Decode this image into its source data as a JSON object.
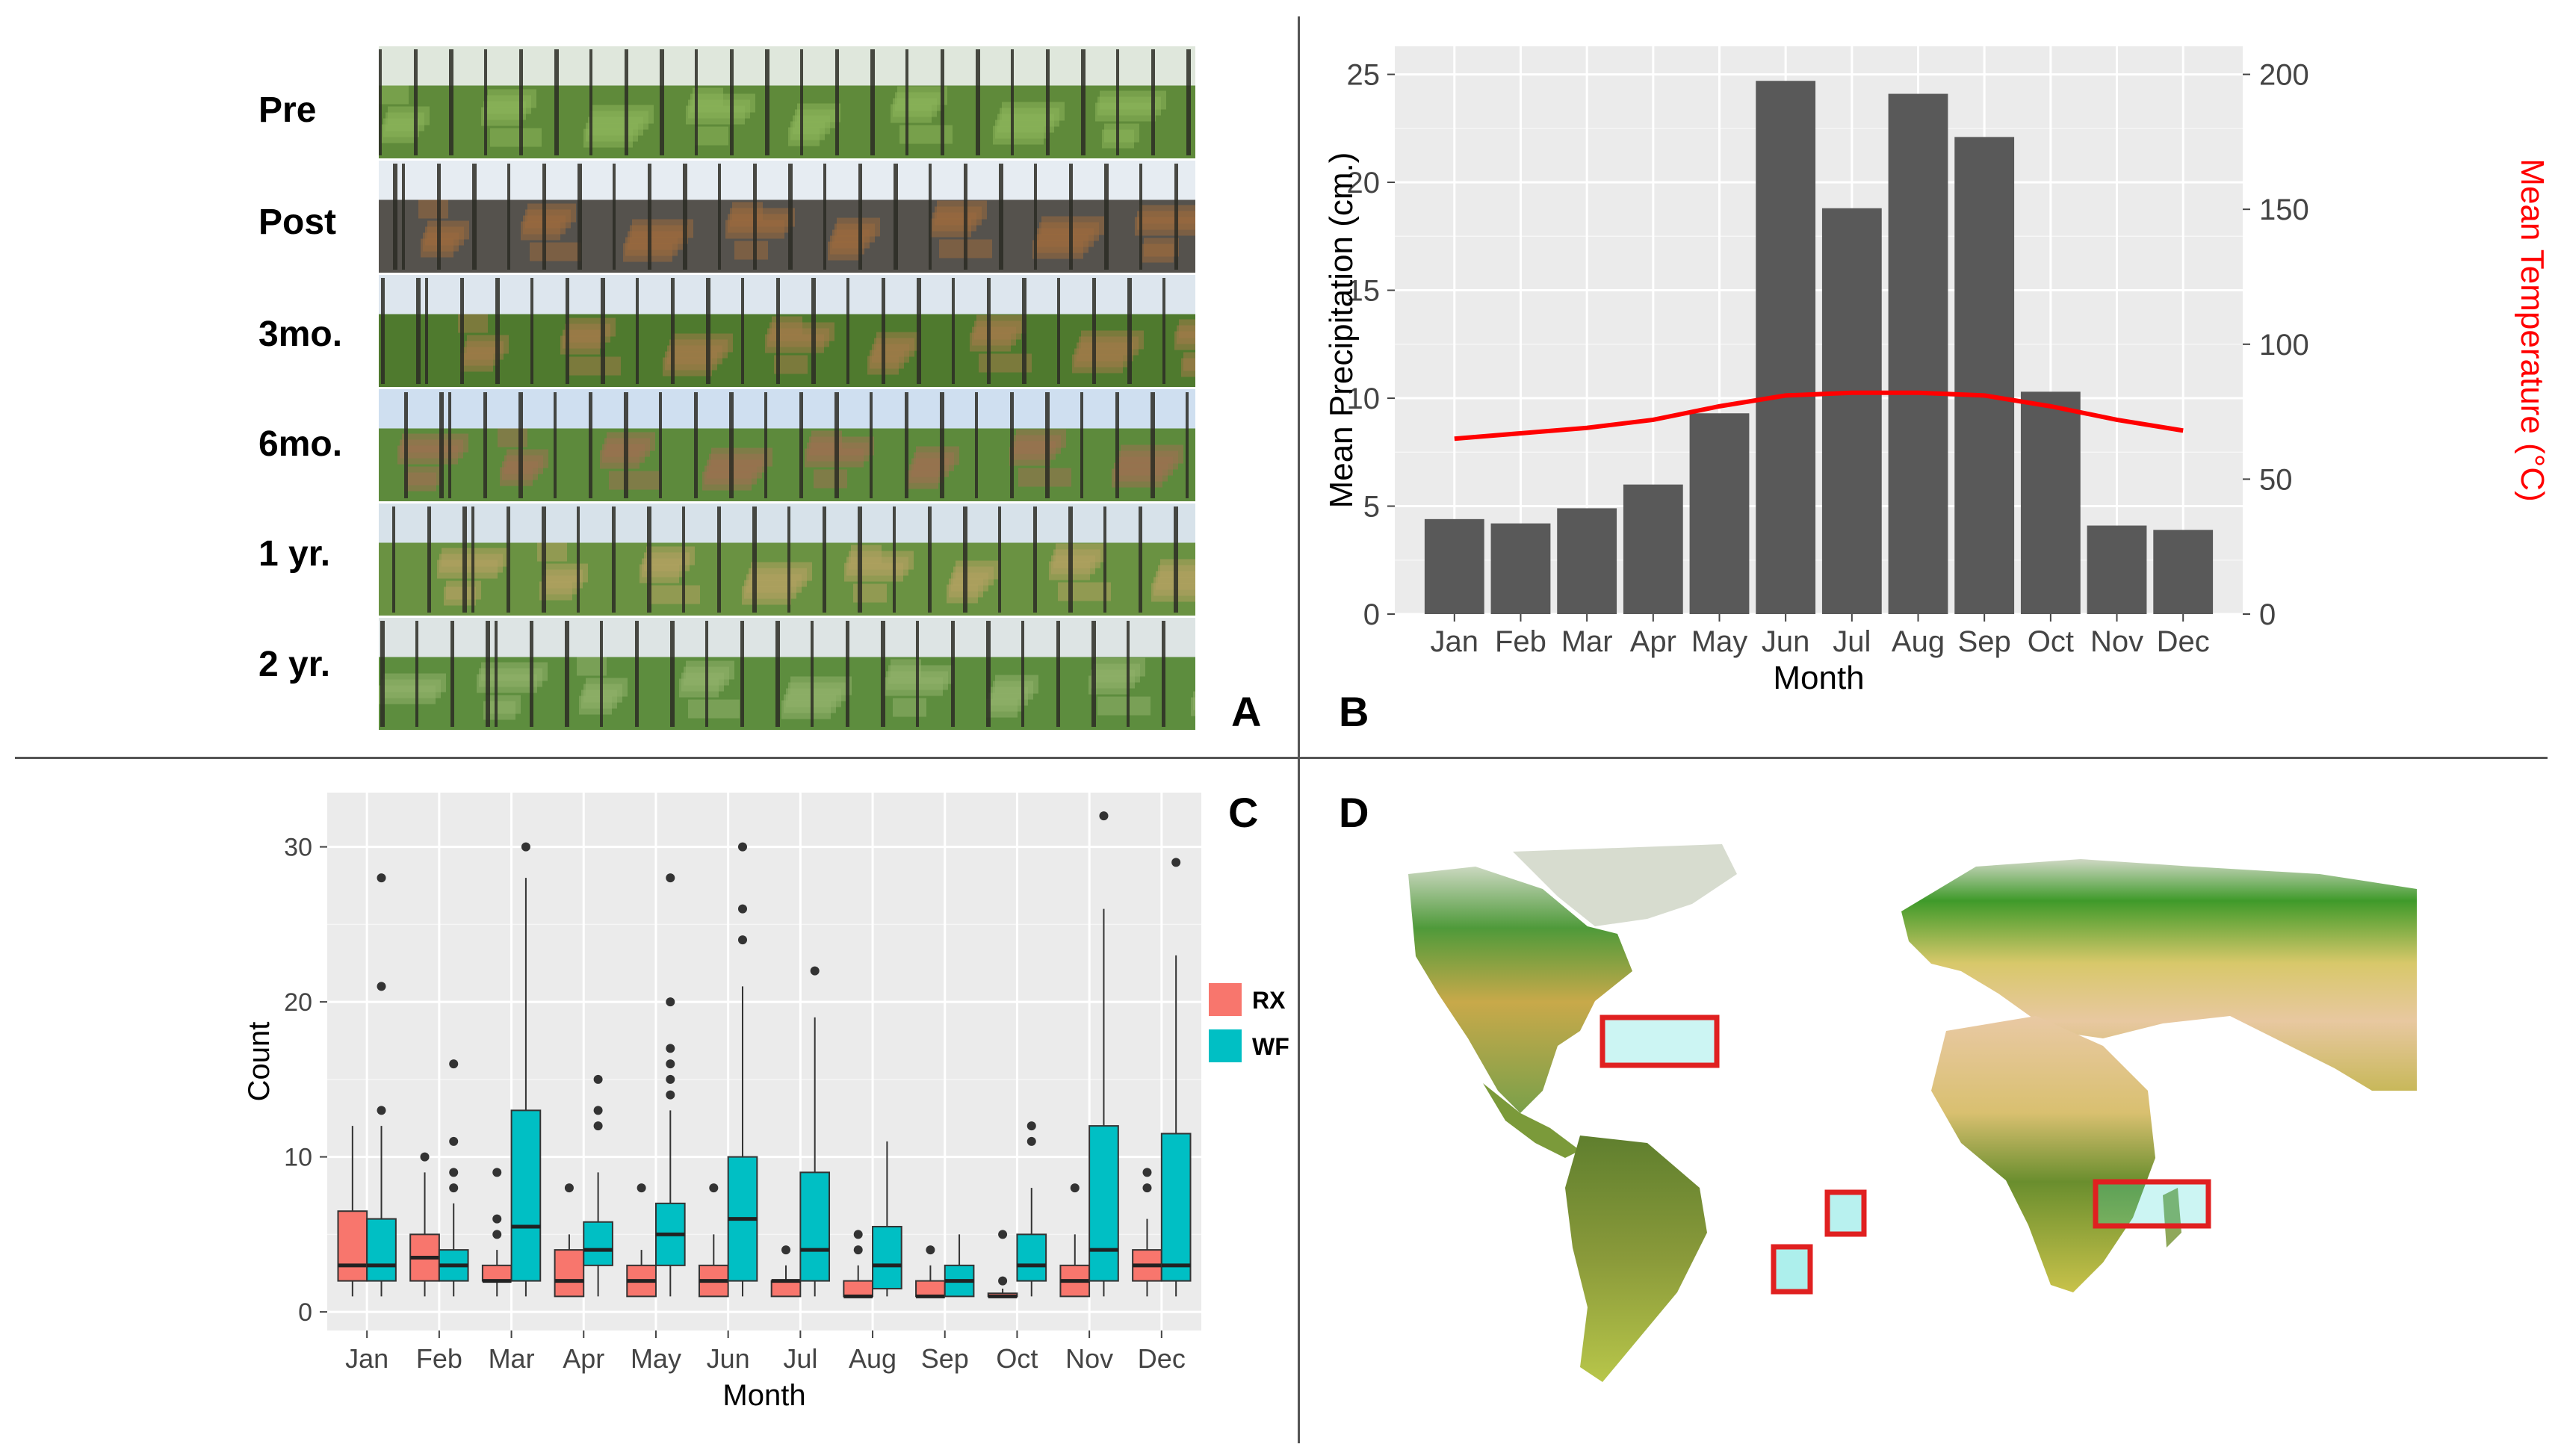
{
  "panel_letters": {
    "a": "A",
    "b": "B",
    "c": "C",
    "d": "D"
  },
  "panel_a": {
    "rows": [
      {
        "label": "Pre",
        "sky": "#dfe7dc",
        "ground": "#5f8a3a",
        "tint": "#8ab25a"
      },
      {
        "label": "Post",
        "sky": "#e6ecf2",
        "ground": "#55524d",
        "tint": "#9a6a3e"
      },
      {
        "label": "3mo.",
        "sky": "#dde6ee",
        "ground": "#4f7a2e",
        "tint": "#a17a48"
      },
      {
        "label": "6mo.",
        "sky": "#cfdff0",
        "ground": "#5d8a3c",
        "tint": "#9b7150"
      },
      {
        "label": "1 yr.",
        "sky": "#d7e2ea",
        "ground": "#6a9242",
        "tint": "#b0a060"
      },
      {
        "label": "2 yr.",
        "sky": "#dde4e4",
        "ground": "#5d8d3e",
        "tint": "#8fb06a"
      }
    ]
  },
  "chart_data": [
    {
      "type": "bar",
      "panel": "B",
      "title": "",
      "xlabel": "Month",
      "ylabel": "Mean Precipitation (cm.)",
      "y2label": "Mean Temperature (°C)",
      "categories": [
        "Jan",
        "Feb",
        "Mar",
        "Apr",
        "May",
        "Jun",
        "Jul",
        "Aug",
        "Sep",
        "Oct",
        "Nov",
        "Dec"
      ],
      "series": [
        {
          "name": "Mean Precipitation",
          "axis": "left",
          "color": "#595959",
          "values": [
            4.4,
            4.2,
            4.9,
            6.0,
            9.3,
            24.7,
            18.8,
            24.1,
            22.1,
            10.3,
            4.1,
            3.9
          ]
        },
        {
          "name": "Mean Temperature",
          "axis": "right",
          "type": "line",
          "color": "#ff0000",
          "values": [
            65,
            67,
            69,
            72,
            77,
            81,
            82,
            82,
            81,
            77,
            72,
            68
          ]
        }
      ],
      "ylim": [
        0,
        26.3
      ],
      "yticks": [
        0,
        5,
        10,
        15,
        20,
        25
      ],
      "y2ticks": [
        0,
        50,
        100,
        150,
        200
      ],
      "y2_scale_per_y": 8
    },
    {
      "type": "box",
      "panel": "C",
      "xlabel": "Month",
      "ylabel": "Count",
      "categories": [
        "Jan",
        "Feb",
        "Mar",
        "Apr",
        "May",
        "Jun",
        "Jul",
        "Aug",
        "Sep",
        "Oct",
        "Nov",
        "Dec"
      ],
      "ylim": [
        0,
        33.5
      ],
      "yticks": [
        0,
        10,
        20,
        30
      ],
      "legend": {
        "items": [
          {
            "name": "RX",
            "color": "#f8766d"
          },
          {
            "name": "WF",
            "color": "#00bfc4"
          }
        ],
        "position": "right"
      },
      "series": [
        {
          "name": "RX",
          "color": "#f8766d",
          "boxes": [
            {
              "min": 1,
              "q1": 2,
              "median": 3,
              "q3": 6.5,
              "max": 12,
              "outliers": []
            },
            {
              "min": 1,
              "q1": 2,
              "median": 3.5,
              "q3": 5,
              "max": 9,
              "outliers": [
                10
              ]
            },
            {
              "min": 1,
              "q1": 2,
              "median": 2,
              "q3": 3,
              "max": 4,
              "outliers": [
                5,
                6,
                9
              ]
            },
            {
              "min": 1,
              "q1": 1,
              "median": 2,
              "q3": 4,
              "max": 5,
              "outliers": [
                8
              ]
            },
            {
              "min": 1,
              "q1": 1,
              "median": 2,
              "q3": 3,
              "max": 4,
              "outliers": [
                8
              ]
            },
            {
              "min": 1,
              "q1": 1,
              "median": 2,
              "q3": 3,
              "max": 5,
              "outliers": [
                8
              ]
            },
            {
              "min": 1,
              "q1": 1,
              "median": 2,
              "q3": 2,
              "max": 3,
              "outliers": [
                4
              ]
            },
            {
              "min": 1,
              "q1": 1,
              "median": 1,
              "q3": 2,
              "max": 3,
              "outliers": [
                4,
                5
              ]
            },
            {
              "min": 1,
              "q1": 1,
              "median": 1,
              "q3": 2,
              "max": 3,
              "outliers": [
                4
              ]
            },
            {
              "min": 1,
              "q1": 1,
              "median": 1,
              "q3": 1.2,
              "max": 1.5,
              "outliers": [
                2,
                5
              ]
            },
            {
              "min": 1,
              "q1": 1,
              "median": 2,
              "q3": 3,
              "max": 5,
              "outliers": [
                8
              ]
            },
            {
              "min": 1,
              "q1": 2,
              "median": 3,
              "q3": 4,
              "max": 6,
              "outliers": [
                8,
                9
              ]
            }
          ]
        },
        {
          "name": "WF",
          "color": "#00bfc4",
          "boxes": [
            {
              "min": 1,
              "q1": 2,
              "median": 3,
              "q3": 6,
              "max": 12,
              "outliers": [
                13,
                21,
                28
              ]
            },
            {
              "min": 1,
              "q1": 2,
              "median": 3,
              "q3": 4,
              "max": 7,
              "outliers": [
                8,
                9,
                11,
                16
              ]
            },
            {
              "min": 1,
              "q1": 2,
              "median": 5.5,
              "q3": 13,
              "max": 28,
              "outliers": [
                30
              ]
            },
            {
              "min": 1,
              "q1": 3,
              "median": 4,
              "q3": 5.8,
              "max": 9,
              "outliers": [
                12,
                13,
                15
              ]
            },
            {
              "min": 1,
              "q1": 3,
              "median": 5,
              "q3": 7,
              "max": 13,
              "outliers": [
                14,
                15,
                16,
                17,
                20,
                28
              ]
            },
            {
              "min": 1,
              "q1": 2,
              "median": 6,
              "q3": 10,
              "max": 21,
              "outliers": [
                24,
                26,
                30
              ]
            },
            {
              "min": 1,
              "q1": 2,
              "median": 4,
              "q3": 9,
              "max": 19,
              "outliers": [
                22
              ]
            },
            {
              "min": 1,
              "q1": 1.5,
              "median": 3,
              "q3": 5.5,
              "max": 11,
              "outliers": []
            },
            {
              "min": 1,
              "q1": 1,
              "median": 2,
              "q3": 3,
              "max": 5,
              "outliers": []
            },
            {
              "min": 1,
              "q1": 2,
              "median": 3,
              "q3": 5,
              "max": 8,
              "outliers": [
                11,
                12
              ]
            },
            {
              "min": 1,
              "q1": 2,
              "median": 4,
              "q3": 12,
              "max": 26,
              "outliers": [
                32
              ]
            },
            {
              "min": 1,
              "q1": 2,
              "median": 3,
              "q3": 11.5,
              "max": 23,
              "outliers": [
                29
              ]
            }
          ]
        }
      ]
    }
  ],
  "panel_d": {
    "box_color": "#e02020",
    "boxes": 4
  }
}
